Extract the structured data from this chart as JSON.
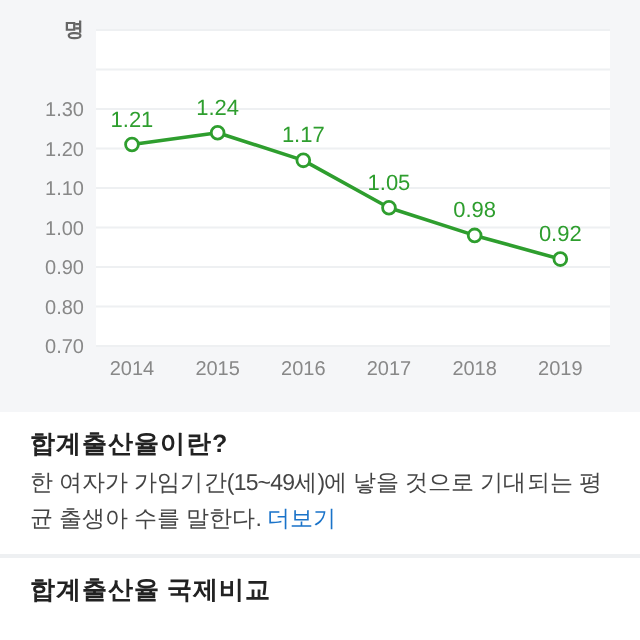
{
  "chart_data": {
    "type": "line",
    "ylabel": "명",
    "categories": [
      "2014",
      "2015",
      "2016",
      "2017",
      "2018",
      "2019"
    ],
    "series": [
      {
        "color": "#2e9e2e",
        "values": [
          1.21,
          1.24,
          1.17,
          1.05,
          0.98,
          0.92
        ]
      }
    ],
    "ylim": [
      0.7,
      1.5
    ],
    "yticks": [
      {
        "value": 0.7,
        "label": "0.70"
      },
      {
        "value": 0.8,
        "label": "0.80"
      },
      {
        "value": 0.9,
        "label": "0.90"
      },
      {
        "value": 1.0,
        "label": "1.00"
      },
      {
        "value": 1.1,
        "label": "1.10"
      },
      {
        "value": 1.2,
        "label": "1.20"
      },
      {
        "value": 1.3,
        "label": "1.30"
      },
      {
        "value": 1.4,
        "label": null
      },
      {
        "value": 1.5,
        "label": null
      }
    ],
    "grid": "y",
    "marker": "circle",
    "line_style": "solid",
    "data_labels": true,
    "annotations": [
      "합계출산율이란?",
      "한 여자가 가임기간(15~49세)에 낳을 것으로 기대되는 평균 출생아 수를 말한다.",
      "더보기",
      "합계출산율 국제비교"
    ]
  }
}
